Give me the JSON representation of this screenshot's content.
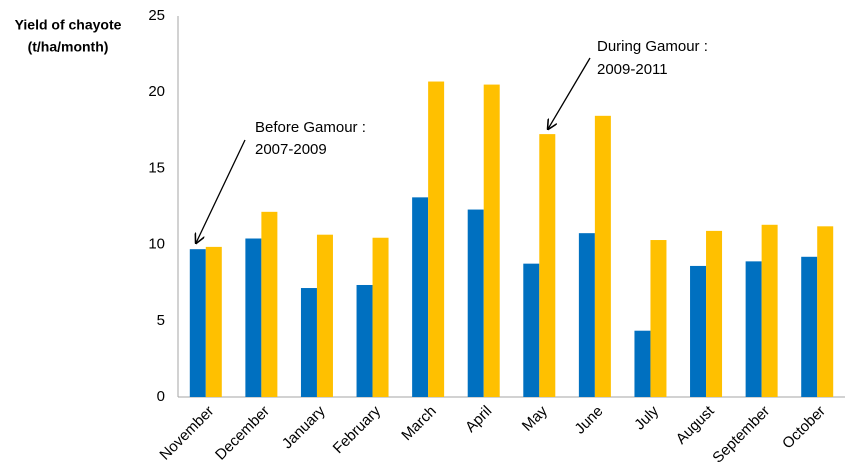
{
  "chart_data": {
    "type": "bar",
    "ylabel": [
      "Yield of chayote",
      "(t/ha/month)"
    ],
    "categories": [
      "November",
      "December",
      "January",
      "February",
      "March",
      "April",
      "May",
      "June",
      "July",
      "August",
      "September",
      "October"
    ],
    "series": [
      {
        "color": "#0070c0",
        "values": [
          9.7,
          10.4,
          7.15,
          7.35,
          13.1,
          12.3,
          8.75,
          10.75,
          4.35,
          8.6,
          8.9,
          9.2
        ]
      },
      {
        "color": "#ffc000",
        "values": [
          9.85,
          12.15,
          10.65,
          10.45,
          20.7,
          20.5,
          17.25,
          18.45,
          10.3,
          10.9,
          11.3,
          11.2
        ]
      }
    ],
    "annotations": [
      {
        "text": [
          "Before Gamour :",
          "2007-2009"
        ]
      },
      {
        "text": [
          "During Gamour :",
          "2009-2011"
        ]
      }
    ],
    "ylim": [
      0,
      25
    ],
    "yticks": [
      0,
      5,
      10,
      15,
      20,
      25
    ],
    "grid": false
  }
}
